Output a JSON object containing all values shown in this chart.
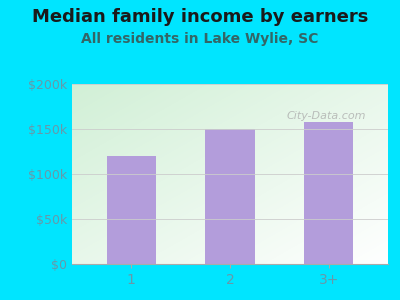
{
  "title": "Median family income by earners",
  "subtitle": "All residents in Lake Wylie, SC",
  "categories": [
    "1",
    "2",
    "3+"
  ],
  "values": [
    120000,
    150000,
    158000
  ],
  "bar_color": "#b39ddb",
  "background_color": "#00e5ff",
  "ylim": [
    0,
    200000
  ],
  "yticks": [
    0,
    50000,
    100000,
    150000,
    200000
  ],
  "ytick_labels": [
    "$0",
    "$50k",
    "$100k",
    "$150k",
    "$200k"
  ],
  "title_fontsize": 13,
  "subtitle_fontsize": 10,
  "title_color": "#1a1a1a",
  "subtitle_color": "#336666",
  "tick_color": "#6699aa",
  "watermark": "City-Data.com",
  "bar_width": 0.5,
  "gradient_top": "#f0f8f0",
  "gradient_bottom": "#d8f0e0"
}
